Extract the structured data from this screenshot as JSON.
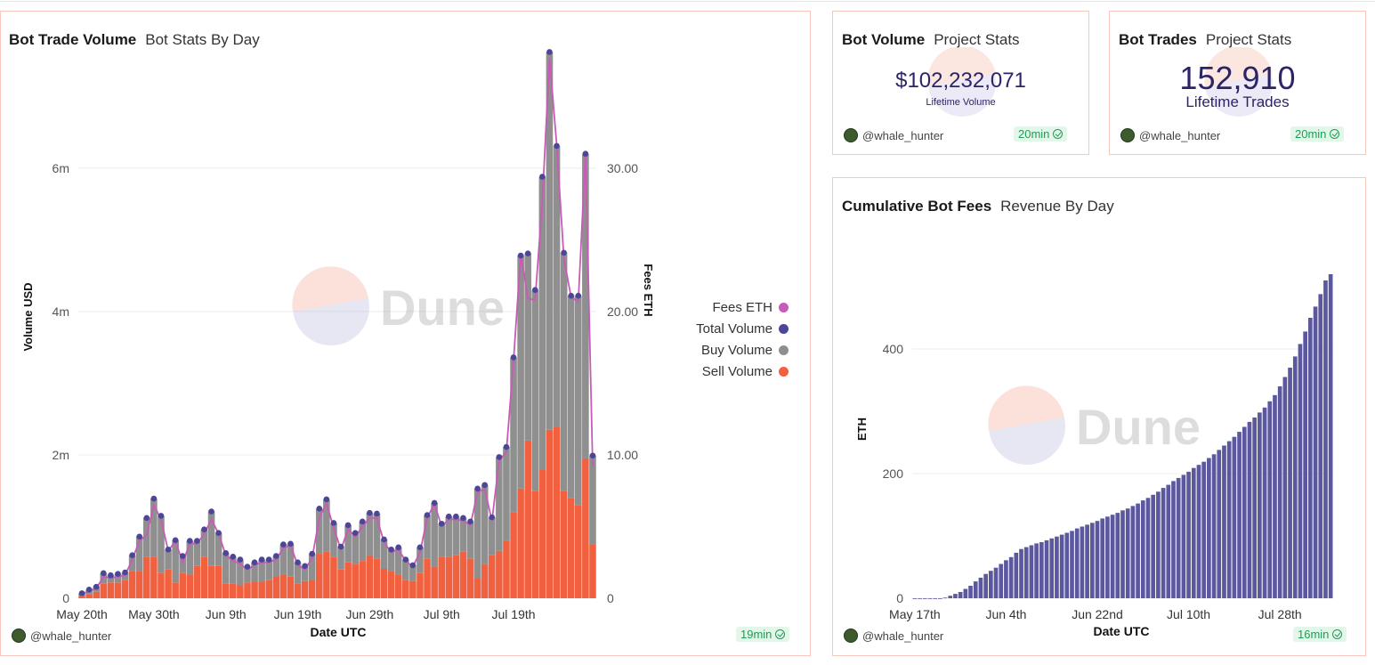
{
  "colors": {
    "sell": "#f2613f",
    "buy": "#8f8f8f",
    "total": "#4b4697",
    "fees": "#c85bb7",
    "cumulative": "#5b589f",
    "card_border": "#f7c7bf",
    "badge_green": "#1f9d55"
  },
  "volume_card": {
    "title": "Bot Trade Volume",
    "subtitle": "Bot Stats By Day",
    "author": "@whale_hunter",
    "freshness": "19min",
    "watermark": "Dune",
    "legend": [
      {
        "label": "Fees ETH",
        "color": "#c85bb7"
      },
      {
        "label": "Total Volume",
        "color": "#4b4697"
      },
      {
        "label": "Buy Volume",
        "color": "#8f8f8f"
      },
      {
        "label": "Sell Volume",
        "color": "#f2613f"
      }
    ]
  },
  "bot_volume_card": {
    "title": "Bot Volume",
    "subtitle": "Project Stats",
    "value": "$102,232,071",
    "label": "Lifetime Volume",
    "author": "@whale_hunter",
    "freshness": "20min"
  },
  "bot_trades_card": {
    "title": "Bot Trades",
    "subtitle": "Project Stats",
    "value": "152,910",
    "label": "Lifetime Trades",
    "author": "@whale_hunter",
    "freshness": "20min"
  },
  "fees_card": {
    "title": "Cumulative Bot Fees",
    "subtitle": "Revenue By Day",
    "author": "@whale_hunter",
    "freshness": "16min",
    "watermark": "Dune"
  },
  "chart_data": [
    {
      "type": "bar",
      "stacked": true,
      "xlabel": "Date UTC",
      "ylabel": "Volume USD",
      "y2label": "Fees ETH",
      "ylim": [
        0,
        7600000
      ],
      "y2lim": [
        0,
        38
      ],
      "yticks": [
        {
          "v": 0,
          "label": "0"
        },
        {
          "v": 2000000,
          "label": "2m"
        },
        {
          "v": 4000000,
          "label": "4m"
        },
        {
          "v": 6000000,
          "label": "6m"
        }
      ],
      "y2ticks": [
        {
          "v": 0,
          "label": "0"
        },
        {
          "v": 10,
          "label": "10.00"
        },
        {
          "v": 20,
          "label": "20.00"
        },
        {
          "v": 30,
          "label": "30.00"
        }
      ],
      "xticks": [
        {
          "index": 0,
          "label": "May 20th"
        },
        {
          "index": 10,
          "label": "May 30th"
        },
        {
          "index": 20,
          "label": "Jun 9th"
        },
        {
          "index": 30,
          "label": "Jun 19th"
        },
        {
          "index": 40,
          "label": "Jun 29th"
        },
        {
          "index": 50,
          "label": "Jul 9th"
        },
        {
          "index": 60,
          "label": "Jul 19th"
        }
      ],
      "legend_position": "right",
      "grid": true,
      "series": [
        {
          "name": "Sell Volume",
          "values": [
            30000,
            60000,
            90000,
            200000,
            220000,
            220000,
            250000,
            380000,
            380000,
            580000,
            580000,
            350000,
            400000,
            220000,
            350000,
            330000,
            450000,
            580000,
            450000,
            450000,
            200000,
            200000,
            180000,
            220000,
            230000,
            230000,
            250000,
            310000,
            330000,
            300000,
            200000,
            240000,
            260000,
            620000,
            650000,
            580000,
            400000,
            500000,
            480000,
            520000,
            590000,
            550000,
            410000,
            380000,
            330000,
            250000,
            240000,
            350000,
            550000,
            440000,
            580000,
            580000,
            600000,
            650000,
            550000,
            280000,
            480000,
            600000,
            660000,
            800000,
            1200000,
            1530000,
            2200000,
            1500000,
            1800000,
            2350000,
            2390000,
            1500000,
            1400000,
            1300000,
            1950000,
            750000
          ]
        },
        {
          "name": "Buy Volume",
          "values": [
            40000,
            60000,
            70000,
            150000,
            100000,
            120000,
            110000,
            220000,
            480000,
            540000,
            810000,
            800000,
            280000,
            590000,
            240000,
            470000,
            350000,
            380000,
            760000,
            460000,
            430000,
            380000,
            360000,
            220000,
            270000,
            310000,
            290000,
            280000,
            420000,
            460000,
            300000,
            210000,
            360000,
            630000,
            730000,
            470000,
            320000,
            520000,
            430000,
            550000,
            600000,
            630000,
            410000,
            300000,
            380000,
            290000,
            220000,
            360000,
            610000,
            890000,
            460000,
            560000,
            540000,
            470000,
            520000,
            1250000,
            1100000,
            530000,
            1310000,
            1310000,
            2160000,
            3250000,
            2610000,
            2800000,
            4080000,
            5270000,
            3920000,
            3320000,
            2820000,
            2920000,
            4250000,
            1240000
          ]
        },
        {
          "name": "Total Volume",
          "values": [
            70000,
            120000,
            160000,
            350000,
            320000,
            340000,
            360000,
            600000,
            860000,
            1120000,
            1390000,
            1150000,
            680000,
            810000,
            590000,
            800000,
            800000,
            960000,
            1210000,
            910000,
            630000,
            580000,
            540000,
            440000,
            500000,
            540000,
            540000,
            590000,
            750000,
            760000,
            500000,
            450000,
            620000,
            1250000,
            1380000,
            1050000,
            720000,
            1020000,
            910000,
            1070000,
            1190000,
            1180000,
            820000,
            680000,
            710000,
            540000,
            460000,
            710000,
            1160000,
            1330000,
            1040000,
            1140000,
            1140000,
            1120000,
            1070000,
            1530000,
            1580000,
            1130000,
            1970000,
            2110000,
            3360000,
            4780000,
            4810000,
            4300000,
            5880000,
            7620000,
            6310000,
            4820000,
            4220000,
            4220000,
            6200000,
            1990000
          ]
        },
        {
          "name": "Fees ETH",
          "values": [
            0.3,
            0.5,
            0.7,
            1.5,
            1.4,
            1.5,
            1.6,
            2.7,
            4.0,
            4.4,
            6.5,
            5.5,
            3.3,
            4.0,
            2.5,
            3.8,
            3.8,
            4.5,
            5.5,
            4.5,
            3.0,
            2.6,
            2.4,
            2.0,
            2.3,
            2.5,
            2.5,
            2.7,
            3.5,
            3.7,
            2.3,
            2.0,
            2.8,
            5.6,
            6.6,
            4.9,
            3.4,
            4.8,
            4.3,
            5.0,
            5.6,
            5.6,
            3.9,
            3.2,
            3.4,
            2.6,
            2.2,
            3.2,
            5.6,
            6.6,
            5.0,
            5.5,
            5.5,
            5.4,
            5.1,
            7.4,
            7.6,
            5.4,
            9.6,
            10.2,
            16.6,
            24.0,
            20.9,
            20.8,
            27.7,
            37.7,
            31.6,
            23.7,
            21.0,
            20.7,
            31.0,
            9.2
          ]
        }
      ]
    },
    {
      "type": "bar",
      "xlabel": "Date UTC",
      "ylabel": "ETH",
      "ylim": [
        0,
        600
      ],
      "yticks": [
        {
          "v": 0,
          "label": "0"
        },
        {
          "v": 200,
          "label": "200"
        },
        {
          "v": 400,
          "label": "400"
        }
      ],
      "xticks": [
        {
          "index": 0,
          "label": "May 17th"
        },
        {
          "index": 18,
          "label": "Jun 4th"
        },
        {
          "index": 36,
          "label": "Jun 22nd"
        },
        {
          "index": 54,
          "label": "Jul 10th"
        },
        {
          "index": 72,
          "label": "Jul 28th"
        }
      ],
      "grid": true,
      "series": [
        {
          "name": "",
          "values": [
            0,
            0,
            0,
            0,
            0,
            0,
            1,
            4,
            7,
            10,
            15,
            20,
            27,
            33,
            39,
            44,
            49,
            55,
            61,
            66,
            73,
            79,
            82,
            85,
            88,
            90,
            93,
            96,
            99,
            102,
            105,
            108,
            112,
            115,
            118,
            121,
            124,
            128,
            131,
            134,
            137,
            141,
            144,
            148,
            152,
            157,
            161,
            166,
            171,
            177,
            182,
            188,
            193,
            198,
            203,
            209,
            214,
            219,
            225,
            231,
            238,
            245,
            252,
            259,
            267,
            275,
            283,
            290,
            298,
            306,
            316,
            326,
            340,
            355,
            370,
            388,
            408,
            428,
            450,
            468,
            488,
            510,
            520
          ]
        }
      ]
    }
  ]
}
